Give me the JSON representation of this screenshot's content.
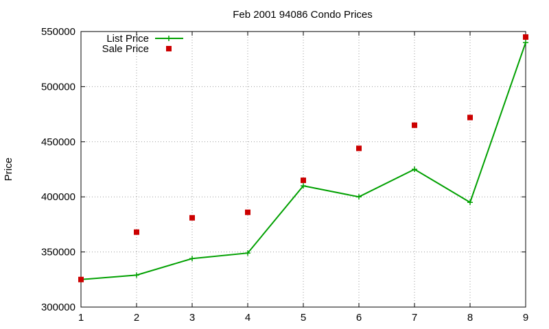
{
  "chart_data": {
    "type": "line",
    "title": "Feb 2001 94086 Condo Prices",
    "xlabel": "",
    "ylabel": "Price",
    "xlim": [
      1,
      9
    ],
    "ylim": [
      300000,
      550000
    ],
    "x_ticks": [
      1,
      2,
      3,
      4,
      5,
      6,
      7,
      8,
      9
    ],
    "y_ticks": [
      300000,
      350000,
      400000,
      450000,
      500000,
      550000
    ],
    "grid": true,
    "legend_position": "top-left",
    "series": [
      {
        "name": "List Price",
        "style": "linespoints",
        "marker": "plus",
        "color": "#00a000",
        "x": [
          1,
          2,
          3,
          4,
          5,
          6,
          7,
          8,
          9
        ],
        "values": [
          325000,
          329000,
          344000,
          349000,
          410000,
          400000,
          425000,
          395000,
          540000
        ]
      },
      {
        "name": "Sale Price",
        "style": "points",
        "marker": "square",
        "color": "#cc0000",
        "x": [
          1,
          2,
          3,
          4,
          5,
          6,
          7,
          8,
          9
        ],
        "values": [
          325000,
          368000,
          381000,
          386000,
          415000,
          444000,
          465000,
          472000,
          545000
        ]
      }
    ]
  }
}
